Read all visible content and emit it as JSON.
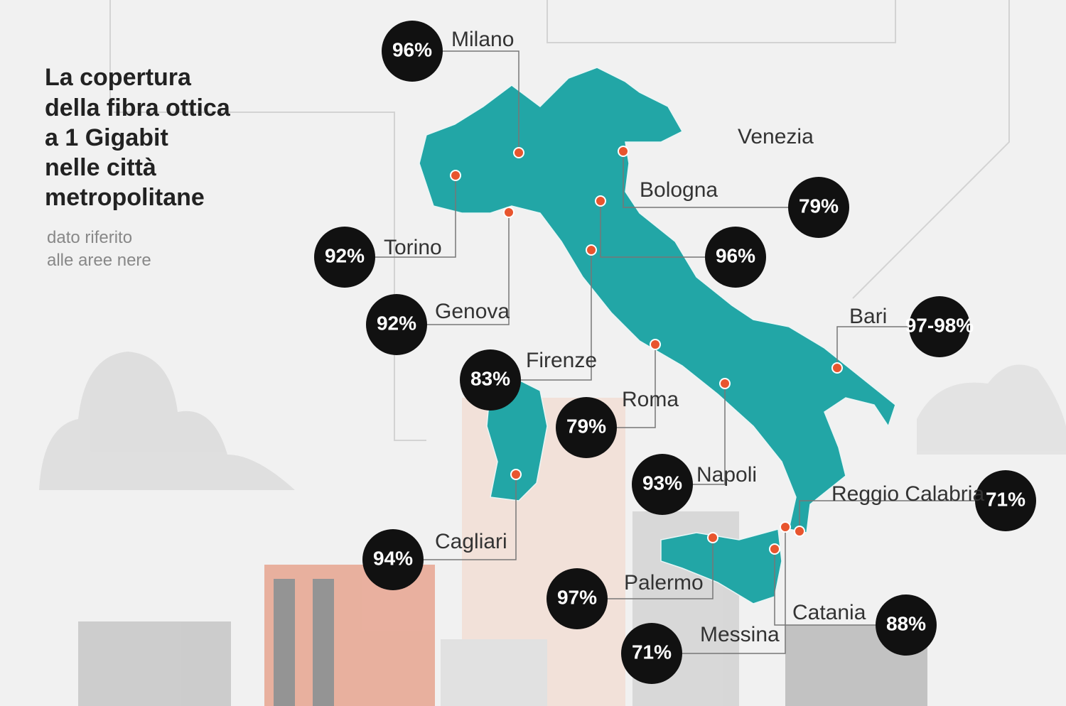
{
  "header": {
    "title": [
      "La copertura",
      "della fibra ottica",
      "a 1 Gigabit",
      "nelle città",
      "metropolitane"
    ],
    "subtitle": [
      "dato riferito",
      "alle aree nere"
    ]
  },
  "cities": [
    {
      "name": "Milano",
      "coverage": "96%"
    },
    {
      "name": "Torino",
      "coverage": "92%"
    },
    {
      "name": "Genova",
      "coverage": "92%"
    },
    {
      "name": "Firenze",
      "coverage": "83%"
    },
    {
      "name": "Roma",
      "coverage": "79%"
    },
    {
      "name": "Napoli",
      "coverage": "93%"
    },
    {
      "name": "Venezia",
      "coverage": "79%"
    },
    {
      "name": "Bologna",
      "coverage": "96%"
    },
    {
      "name": "Bari",
      "coverage": "97-98%"
    },
    {
      "name": "Reggio Calabria",
      "coverage": "71%"
    },
    {
      "name": "Cagliari",
      "coverage": "94%"
    },
    {
      "name": "Palermo",
      "coverage": "97%"
    },
    {
      "name": "Messina",
      "coverage": "71%"
    },
    {
      "name": "Catania",
      "coverage": "88%"
    }
  ]
}
